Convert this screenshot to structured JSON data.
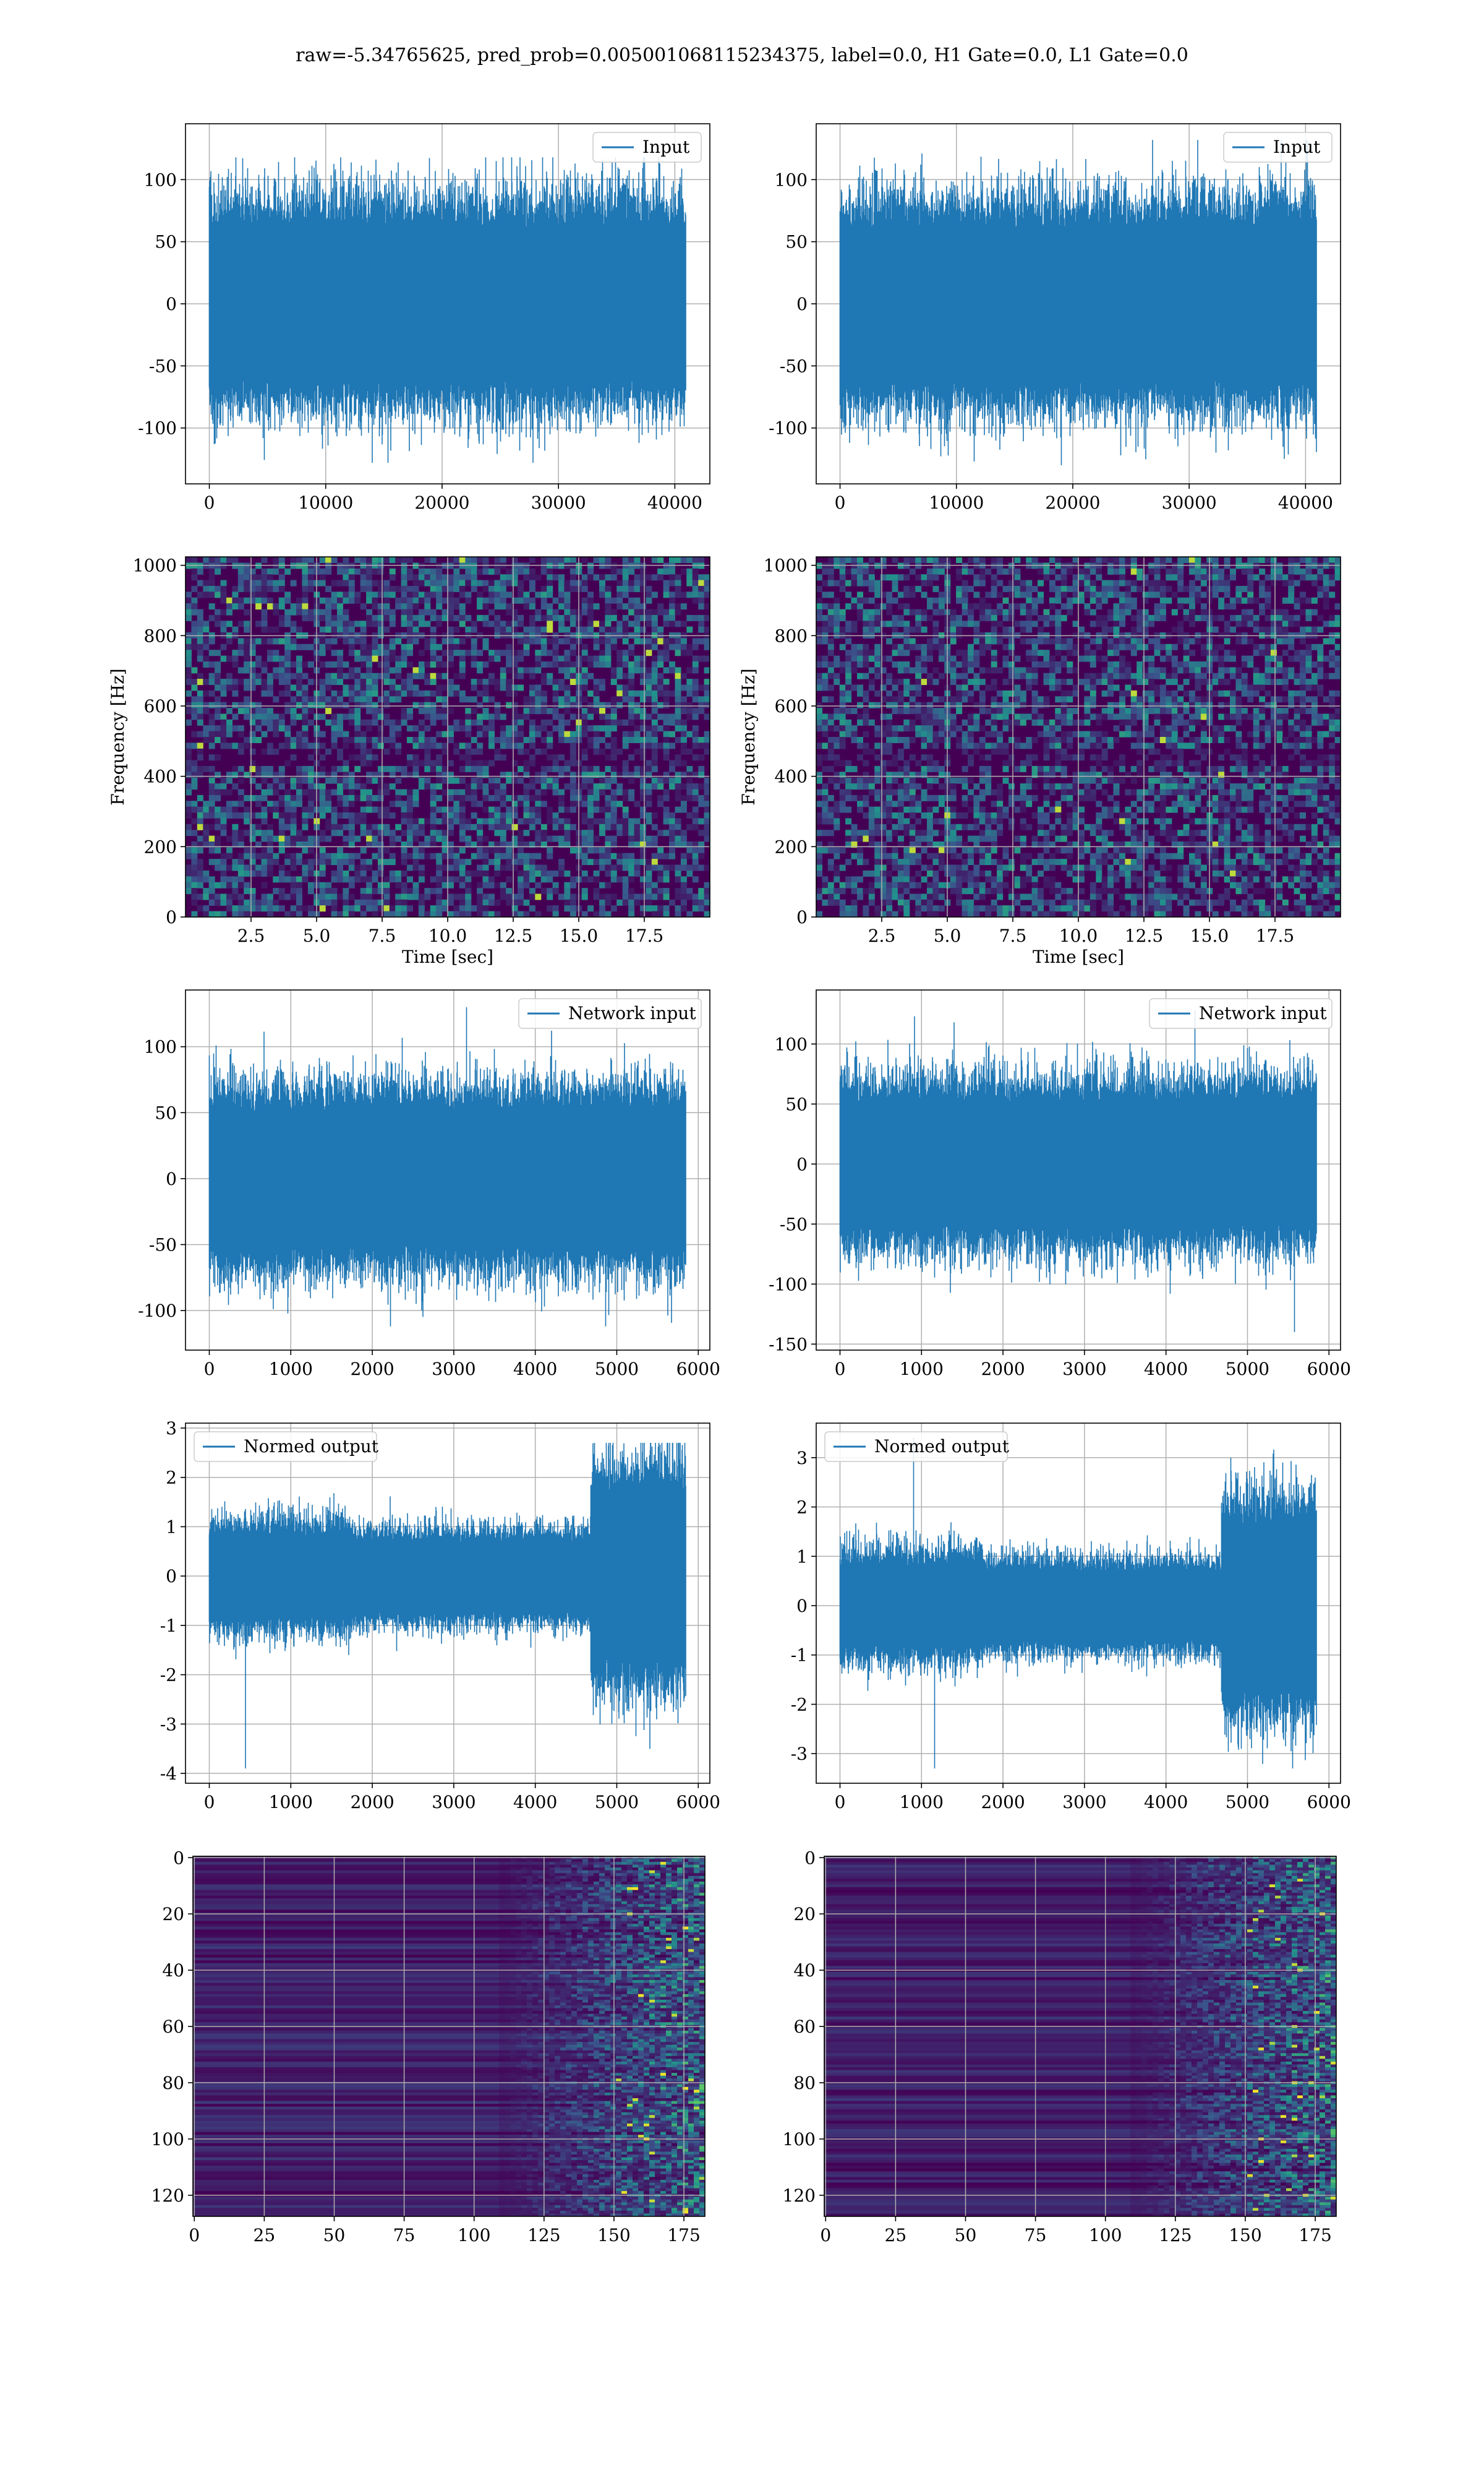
{
  "figure": {
    "title": "raw=-5.34765625, pred_prob=0.005001068115234375, label=0.0, H1 Gate=0.0, L1 Gate=0.0"
  },
  "colors": {
    "series": "#1f77b4",
    "viridis_low": "#440154",
    "viridis_mid": "#21918c",
    "viridis_high": "#fde725",
    "grid": "#b0b0b0",
    "axes": "#000000"
  },
  "chart_data": [
    {
      "id": "row1-left",
      "type": "line",
      "grid": true,
      "legend": "top-right",
      "series": [
        {
          "name": "Input",
          "n_points": 40960,
          "envelope": {
            "typical": 60,
            "max": 118,
            "min": -128
          }
        }
      ],
      "xlim": [
        -2048,
        43008
      ],
      "ylim": [
        -145,
        145
      ],
      "xticks": [
        0,
        10000,
        20000,
        30000,
        40000
      ],
      "yticks": [
        -100,
        -50,
        0,
        50,
        100
      ],
      "xlabel": "",
      "ylabel": ""
    },
    {
      "id": "row1-right",
      "type": "line",
      "grid": true,
      "legend": "top-right",
      "series": [
        {
          "name": "Input",
          "n_points": 40960,
          "envelope": {
            "typical": 60,
            "max": 132,
            "min": -130
          }
        }
      ],
      "xlim": [
        -2048,
        43008
      ],
      "ylim": [
        -145,
        145
      ],
      "xticks": [
        0,
        10000,
        20000,
        30000,
        40000
      ],
      "yticks": [
        -100,
        -50,
        0,
        50,
        100
      ],
      "xlabel": "",
      "ylabel": ""
    },
    {
      "id": "row2-left",
      "type": "heatmap",
      "colormap": "viridis",
      "grid": true,
      "xlim": [
        0,
        20
      ],
      "ylim": [
        0,
        1024
      ],
      "xticks": [
        2.5,
        5.0,
        7.5,
        10.0,
        12.5,
        15.0,
        17.5
      ],
      "yticks": [
        0,
        200,
        400,
        600,
        800,
        1000
      ],
      "xlabel": "Time [sec]",
      "ylabel": "Frequency [Hz]"
    },
    {
      "id": "row2-right",
      "type": "heatmap",
      "colormap": "viridis",
      "grid": true,
      "xlim": [
        0,
        20
      ],
      "ylim": [
        0,
        1024
      ],
      "xticks": [
        2.5,
        5.0,
        7.5,
        10.0,
        12.5,
        15.0,
        17.5
      ],
      "yticks": [
        0,
        200,
        400,
        600,
        800,
        1000
      ],
      "xlabel": "Time [sec]",
      "ylabel": "Frequency [Hz]"
    },
    {
      "id": "row3-left",
      "type": "line",
      "grid": true,
      "legend": "top-right",
      "series": [
        {
          "name": "Network input",
          "n_points": 5850,
          "envelope": {
            "typical": 50,
            "max": 130,
            "min": -112
          }
        }
      ],
      "xlim": [
        -292,
        6142
      ],
      "ylim": [
        -130,
        143
      ],
      "xticks": [
        0,
        1000,
        2000,
        3000,
        4000,
        5000,
        6000
      ],
      "yticks": [
        -100,
        -50,
        0,
        50,
        100
      ],
      "xlabel": "",
      "ylabel": ""
    },
    {
      "id": "row3-right",
      "type": "line",
      "grid": true,
      "legend": "top-right",
      "series": [
        {
          "name": "Network input",
          "n_points": 5850,
          "envelope": {
            "typical": 50,
            "max": 128,
            "min": -140
          }
        }
      ],
      "xlim": [
        -292,
        6142
      ],
      "ylim": [
        -155,
        145
      ],
      "xticks": [
        0,
        1000,
        2000,
        3000,
        4000,
        5000,
        6000
      ],
      "yticks": [
        -150,
        -100,
        -50,
        0,
        50,
        100
      ],
      "xlabel": "",
      "ylabel": ""
    },
    {
      "id": "row4-left",
      "type": "line",
      "grid": true,
      "legend": "top-left",
      "series": [
        {
          "name": "Normed output",
          "n_points": 5850,
          "envelope": {
            "typical": 0.8,
            "max": 2.7,
            "min": -3.9
          }
        }
      ],
      "xlim": [
        -292,
        6142
      ],
      "ylim": [
        -4.2,
        3.1
      ],
      "xticks": [
        0,
        1000,
        2000,
        3000,
        4000,
        5000,
        6000
      ],
      "yticks": [
        -4,
        -3,
        -2,
        -1,
        0,
        1,
        2,
        3
      ],
      "xlabel": "",
      "ylabel": ""
    },
    {
      "id": "row4-right",
      "type": "line",
      "grid": true,
      "legend": "top-left",
      "series": [
        {
          "name": "Normed output",
          "n_points": 5850,
          "envelope": {
            "typical": 0.8,
            "max": 3.4,
            "min": -3.3
          }
        }
      ],
      "xlim": [
        -292,
        6142
      ],
      "ylim": [
        -3.6,
        3.7
      ],
      "xticks": [
        0,
        1000,
        2000,
        3000,
        4000,
        5000,
        6000
      ],
      "yticks": [
        -3,
        -2,
        -1,
        0,
        1,
        2,
        3
      ],
      "xlabel": "",
      "ylabel": ""
    },
    {
      "id": "row5-left",
      "type": "heatmap",
      "colormap": "viridis",
      "grid": true,
      "xlim": [
        -0.5,
        182.5
      ],
      "ylim": [
        127.5,
        -0.5
      ],
      "xticks": [
        0,
        25,
        50,
        75,
        100,
        125,
        150,
        175
      ],
      "yticks": [
        0,
        20,
        40,
        60,
        80,
        100,
        120
      ],
      "xlabel": "",
      "ylabel": ""
    },
    {
      "id": "row5-right",
      "type": "heatmap",
      "colormap": "viridis",
      "grid": true,
      "xlim": [
        -0.5,
        182.5
      ],
      "ylim": [
        127.5,
        -0.5
      ],
      "xticks": [
        0,
        25,
        50,
        75,
        100,
        125,
        150,
        175
      ],
      "yticks": [
        0,
        20,
        40,
        60,
        80,
        100,
        120
      ],
      "xlabel": "",
      "ylabel": ""
    }
  ]
}
